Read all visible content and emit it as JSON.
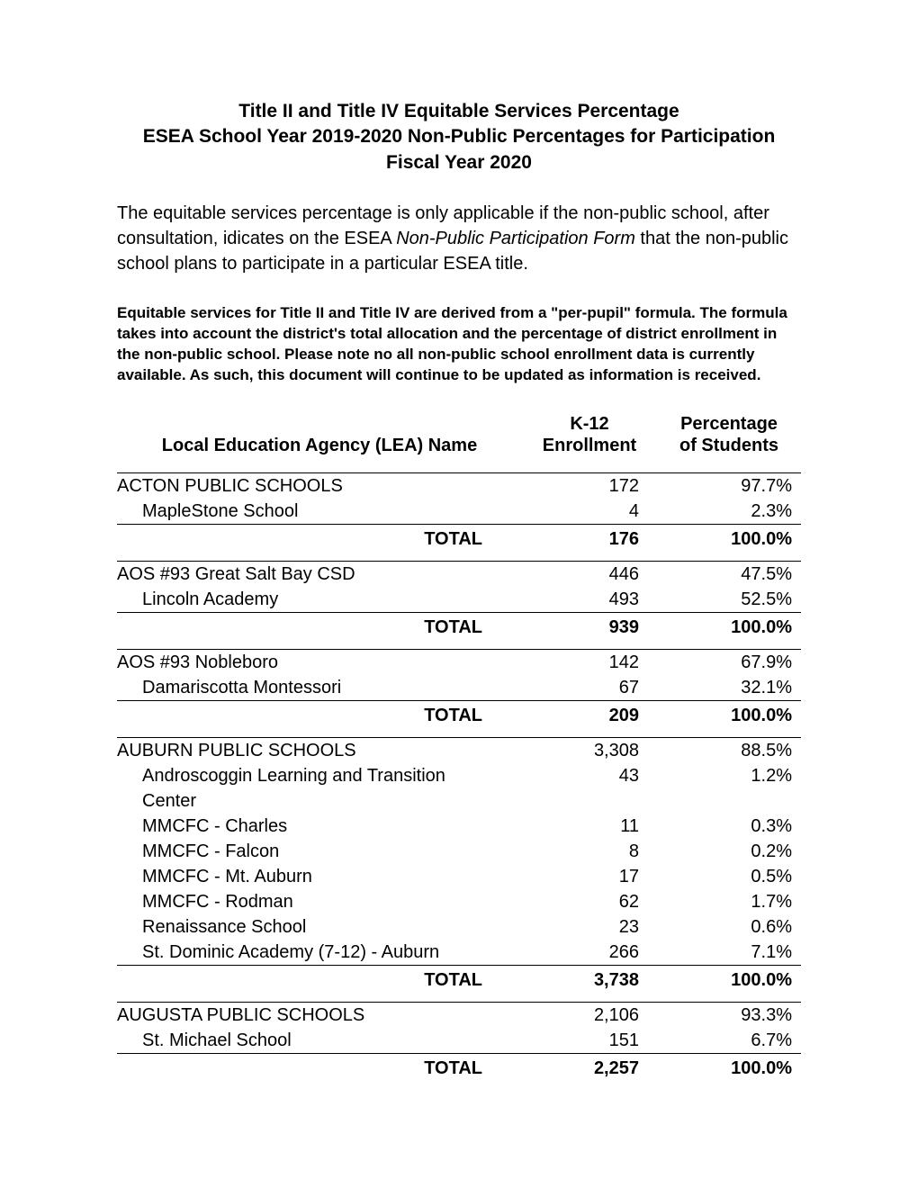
{
  "title": {
    "line1": "Title II and Title IV Equitable Services Percentage",
    "line2": "ESEA School Year 2019-2020 Non-Public Percentages for Participation",
    "line3": "Fiscal Year 2020"
  },
  "intro": {
    "pre": "The equitable services percentage is only applicable if the non-public school, after consultation, idicates on the ESEA ",
    "italic": "Non-Public Participation Form ",
    "post": "that the non-public school plans to participate in a particular ESEA title."
  },
  "note": "Equitable services for Title II and Title IV are derived from a \"per-pupil\" formula. The formula takes into account the district's total allocation and the percentage of district enrollment in the non-public school. Please note no all non-public school enrollment data is currently available. As such, this document will continue to be updated as information is received.",
  "headers": {
    "name": "Local Education Agency (LEA) Name",
    "enroll_l1": "K-12",
    "enroll_l2": "Enrollment",
    "pct_l1": "Percentage",
    "pct_l2": "of Students"
  },
  "total_label": "TOTAL",
  "groups": [
    {
      "main": {
        "name": "ACTON PUBLIC SCHOOLS",
        "enroll": "172",
        "pct": "97.7%"
      },
      "subs": [
        {
          "name": "MapleStone School",
          "enroll": "4",
          "pct": "2.3%"
        }
      ],
      "total": {
        "enroll": "176",
        "pct": "100.0%"
      }
    },
    {
      "main": {
        "name": "AOS #93 Great Salt Bay CSD",
        "enroll": "446",
        "pct": "47.5%"
      },
      "subs": [
        {
          "name": "Lincoln Academy",
          "enroll": "493",
          "pct": "52.5%"
        }
      ],
      "total": {
        "enroll": "939",
        "pct": "100.0%"
      }
    },
    {
      "main": {
        "name": "AOS #93 Nobleboro",
        "enroll": "142",
        "pct": "67.9%"
      },
      "subs": [
        {
          "name": "Damariscotta Montessori",
          "enroll": "67",
          "pct": "32.1%"
        }
      ],
      "total": {
        "enroll": "209",
        "pct": "100.0%"
      }
    },
    {
      "main": {
        "name": "AUBURN  PUBLIC SCHOOLS",
        "enroll": "3,308",
        "pct": "88.5%"
      },
      "subs": [
        {
          "name": "Androscoggin Learning and Transition Center",
          "enroll": "43",
          "pct": "1.2%"
        },
        {
          "name": "MMCFC - Charles",
          "enroll": "11",
          "pct": "0.3%"
        },
        {
          "name": "MMCFC - Falcon",
          "enroll": "8",
          "pct": "0.2%"
        },
        {
          "name": "MMCFC - Mt. Auburn",
          "enroll": "17",
          "pct": "0.5%"
        },
        {
          "name": "MMCFC - Rodman",
          "enroll": "62",
          "pct": "1.7%"
        },
        {
          "name": "Renaissance School",
          "enroll": "23",
          "pct": "0.6%"
        },
        {
          "name": "St. Dominic Academy (7-12) - Auburn",
          "enroll": "266",
          "pct": "7.1%"
        }
      ],
      "total": {
        "enroll": "3,738",
        "pct": "100.0%"
      }
    },
    {
      "main": {
        "name": "AUGUSTA  PUBLIC SCHOOLS",
        "enroll": "2,106",
        "pct": "93.3%"
      },
      "subs": [
        {
          "name": "St. Michael School",
          "enroll": "151",
          "pct": "6.7%"
        }
      ],
      "total": {
        "enroll": "2,257",
        "pct": "100.0%"
      }
    }
  ]
}
